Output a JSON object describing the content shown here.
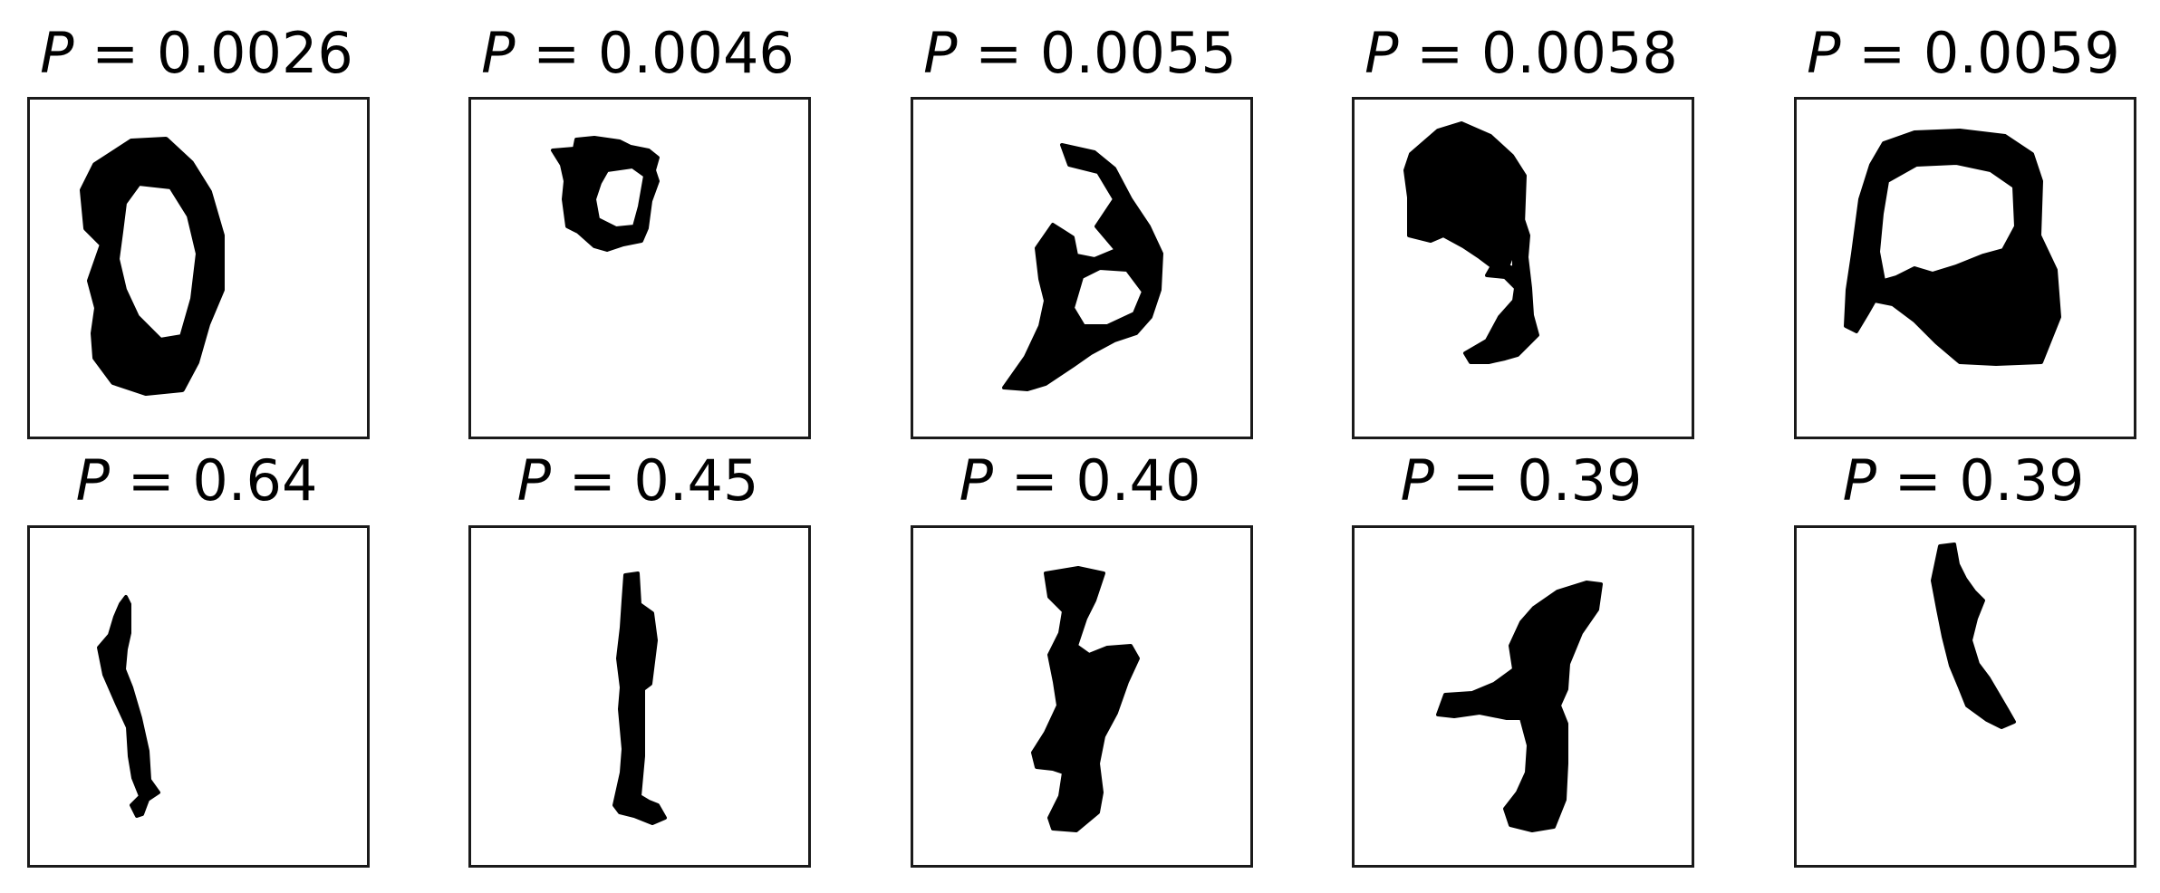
{
  "top_row": [
    {
      "var": "P",
      "eq": " = ",
      "value": "0.0026",
      "glyph": "digit-zero-loop"
    },
    {
      "var": "P",
      "eq": " = ",
      "value": "0.0046",
      "glyph": "small-loop-stroke"
    },
    {
      "var": "P",
      "eq": " = ",
      "value": "0.0055",
      "glyph": "curled-stroke"
    },
    {
      "var": "P",
      "eq": " = ",
      "value": "0.0058",
      "glyph": "blob-with-tail"
    },
    {
      "var": "P",
      "eq": " = ",
      "value": "0.0059",
      "glyph": "arch-with-blob"
    }
  ],
  "bottom_row": [
    {
      "var": "P",
      "eq": " = ",
      "value": "0.64",
      "glyph": "thin-diagonal-stroke"
    },
    {
      "var": "P",
      "eq": " = ",
      "value": "0.45",
      "glyph": "vertical-stroke"
    },
    {
      "var": "P",
      "eq": " = ",
      "value": "0.40",
      "glyph": "thick-slanted-stroke"
    },
    {
      "var": "P",
      "eq": " = ",
      "value": "0.39",
      "glyph": "branched-stroke"
    },
    {
      "var": "P",
      "eq": " = ",
      "value": "0.39",
      "glyph": "short-curved-stroke"
    }
  ],
  "colors": {
    "ink": "#000000",
    "frame": "#1a1a1a",
    "background": "#ffffff"
  }
}
